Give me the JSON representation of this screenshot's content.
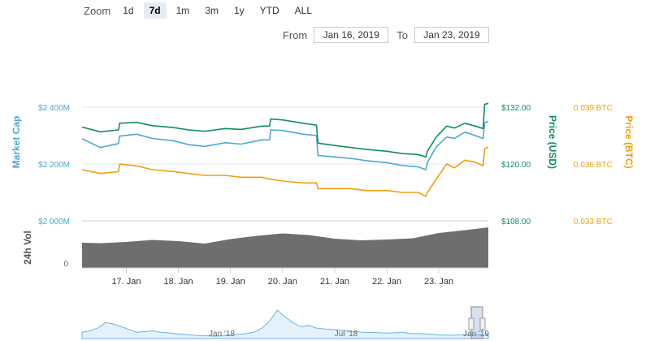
{
  "zoom": {
    "label": "Zoom",
    "buttons": [
      "1d",
      "7d",
      "1m",
      "3m",
      "1y",
      "YTD",
      "ALL"
    ],
    "active": "7d"
  },
  "range": {
    "from_label": "From",
    "from_value": "Jan 16, 2019",
    "to_label": "To",
    "to_value": "Jan 23, 2019"
  },
  "colors": {
    "market_cap": "#4aa8d8",
    "price_usd": "#0f8f5c",
    "price_btc": "#f0a010",
    "volume": "#6e6e6e",
    "navigator": "#6fb3e0",
    "grid": "#e6e6e6"
  },
  "chart_data": {
    "type": "line",
    "axes": {
      "market_cap": {
        "label": "Market Cap",
        "ticks": [
          "$2 400M",
          "$2 200M",
          "$2 000M"
        ],
        "values": [
          2400,
          2200,
          2000
        ],
        "unit": "M USD"
      },
      "price_usd": {
        "label": "Price (USD)",
        "ticks": [
          "$132.00",
          "$120.00",
          "$108.00"
        ],
        "values": [
          132,
          120,
          108
        ]
      },
      "price_btc": {
        "label": "Price (BTC)",
        "ticks": [
          "0.039 BTC",
          "0.036 BTC",
          "0.033 BTC"
        ],
        "values": [
          0.039,
          0.036,
          0.033
        ]
      },
      "volume": {
        "label": "24h Vol",
        "ticks": [
          "0"
        ]
      }
    },
    "x_ticks": [
      "17. Jan",
      "18. Jan",
      "19. Jan",
      "20. Jan",
      "21. Jan",
      "22. Jan",
      "23. Jan"
    ],
    "x_range": [
      16.15,
      23.95
    ],
    "series": [
      {
        "key": "market_cap",
        "axis": "market_cap",
        "x": [
          16.15,
          16.5,
          16.85,
          16.87,
          17.2,
          17.5,
          17.9,
          18.2,
          18.5,
          18.9,
          19.2,
          19.6,
          19.75,
          19.77,
          20.0,
          20.4,
          20.65,
          20.68,
          21.0,
          21.3,
          21.6,
          22.0,
          22.3,
          22.6,
          22.75,
          22.78,
          22.95,
          23.15,
          23.3,
          23.5,
          23.7,
          23.85,
          23.88,
          23.95
        ],
        "values": [
          2289,
          2258,
          2272,
          2298,
          2305,
          2290,
          2282,
          2268,
          2262,
          2275,
          2270,
          2285,
          2285,
          2320,
          2318,
          2305,
          2300,
          2230,
          2225,
          2220,
          2212,
          2205,
          2195,
          2190,
          2180,
          2205,
          2260,
          2295,
          2290,
          2312,
          2300,
          2290,
          2345,
          2350
        ]
      },
      {
        "key": "price_usd",
        "axis": "price_usd",
        "x": [
          16.15,
          16.5,
          16.85,
          16.87,
          17.2,
          17.5,
          17.9,
          18.2,
          18.5,
          18.9,
          19.2,
          19.6,
          19.75,
          19.77,
          20.0,
          20.4,
          20.65,
          20.68,
          21.0,
          21.3,
          21.6,
          22.0,
          22.3,
          22.6,
          22.75,
          22.78,
          22.95,
          23.15,
          23.3,
          23.5,
          23.7,
          23.85,
          23.88,
          23.95
        ],
        "values": [
          127.8,
          126.8,
          127.2,
          128.6,
          128.8,
          128.1,
          127.7,
          127.2,
          126.9,
          127.5,
          127.3,
          128.0,
          128.0,
          129.5,
          129.3,
          128.6,
          128.2,
          124.4,
          123.9,
          123.5,
          123.1,
          122.7,
          122.2,
          122.0,
          121.5,
          122.7,
          125.7,
          128.0,
          127.6,
          128.6,
          128.0,
          127.5,
          132.6,
          132.8
        ]
      },
      {
        "key": "price_btc",
        "axis": "price_btc",
        "x": [
          16.15,
          16.5,
          16.85,
          16.87,
          17.2,
          17.5,
          17.9,
          18.2,
          18.5,
          18.9,
          19.2,
          19.6,
          19.75,
          19.77,
          20.0,
          20.4,
          20.65,
          20.68,
          21.0,
          21.3,
          21.6,
          22.0,
          22.3,
          22.6,
          22.75,
          22.78,
          22.95,
          23.15,
          23.3,
          23.5,
          23.7,
          23.85,
          23.88,
          23.95
        ],
        "values": [
          0.0357,
          0.0355,
          0.0356,
          0.036,
          0.0359,
          0.0357,
          0.0356,
          0.0355,
          0.0354,
          0.0354,
          0.0353,
          0.0353,
          0.0352,
          0.0352,
          0.0351,
          0.035,
          0.035,
          0.0347,
          0.0347,
          0.0347,
          0.0346,
          0.0346,
          0.0345,
          0.0345,
          0.0343,
          0.0345,
          0.0352,
          0.036,
          0.0358,
          0.0362,
          0.0361,
          0.0359,
          0.0368,
          0.0369
        ]
      },
      {
        "key": "volume",
        "axis": "volume",
        "x": [
          16.15,
          16.5,
          17.0,
          17.5,
          18.0,
          18.5,
          19.0,
          19.5,
          20.0,
          20.5,
          21.0,
          21.5,
          22.0,
          22.5,
          23.0,
          23.5,
          23.95
        ],
        "values": [
          0.62,
          0.61,
          0.64,
          0.69,
          0.66,
          0.6,
          0.71,
          0.79,
          0.85,
          0.81,
          0.72,
          0.68,
          0.7,
          0.73,
          0.86,
          0.93,
          1.0
        ]
      }
    ],
    "navigator": {
      "ticks": [
        "Jan '18",
        "Jul '18",
        "Jan '19"
      ],
      "values": [
        0.2,
        0.25,
        0.35,
        0.55,
        0.5,
        0.4,
        0.3,
        0.2,
        0.22,
        0.25,
        0.2,
        0.18,
        0.15,
        0.12,
        0.1,
        0.08,
        0.07,
        0.06,
        0.07,
        0.1,
        0.12,
        0.15,
        0.2,
        0.35,
        0.6,
        1.0,
        0.75,
        0.55,
        0.4,
        0.45,
        0.35,
        0.32,
        0.3,
        0.28,
        0.24,
        0.22,
        0.2,
        0.19,
        0.18,
        0.17,
        0.18,
        0.2,
        0.16,
        0.15,
        0.14,
        0.12,
        0.1,
        0.09,
        0.1,
        0.11,
        0.1,
        0.11,
        0.12
      ]
    }
  }
}
